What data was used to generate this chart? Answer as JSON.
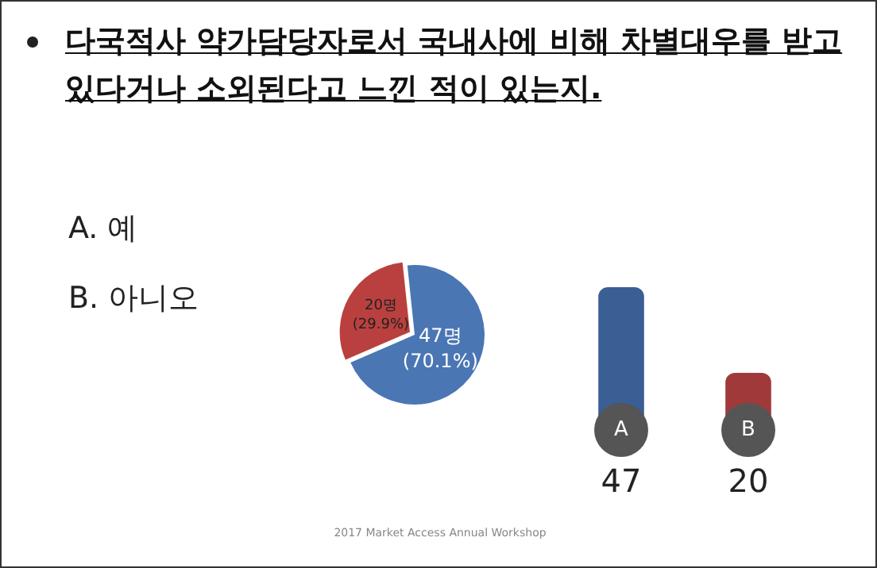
{
  "chart_data": [
    {
      "type": "pie",
      "title": "다국적사 약가담당자로서 국내사에 비해 차별대우를 받고 있다거나 소외된다고 느낀 적이 있는지.",
      "categories": [
        null,
        null
      ],
      "values": [
        47,
        20
      ],
      "colors": [
        "#4a76b4",
        "#b9403e"
      ],
      "value_labels": [
        "47명\n(70.1%)",
        "20명\n(29.9%)"
      ],
      "annotations": [
        "A.  예",
        "B.  아니오",
        "2017 Market Access Annual Workshop"
      ],
      "legend": false
    },
    {
      "type": "bar",
      "categories": [
        "A",
        "B"
      ],
      "values": [
        47,
        20
      ],
      "colors": [
        "#3a5f95",
        "#a03a3a"
      ],
      "data_labels": true,
      "legend": false
    }
  ]
}
